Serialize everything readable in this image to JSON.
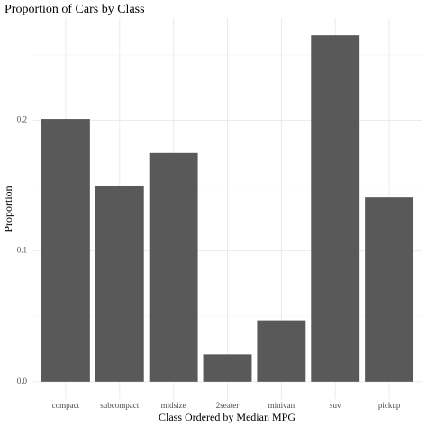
{
  "chart_data": {
    "type": "bar",
    "title": "Proportion of Cars by Class",
    "xlabel": "Class Ordered by Median MPG",
    "ylabel": "Proportion",
    "categories": [
      "compact",
      "subcompact",
      "midsize",
      "2seater",
      "minivan",
      "suv",
      "pickup"
    ],
    "values": [
      0.201,
      0.15,
      0.175,
      0.021,
      0.047,
      0.265,
      0.141
    ],
    "color": "#595959",
    "ylim": [
      -0.0132,
      0.2782
    ],
    "yticks": [
      {
        "value": 0,
        "label": "0.0"
      },
      0.1,
      0.2
    ],
    "minor_yticks": [
      0.05,
      0.15,
      0.25
    ],
    "grid": true
  }
}
